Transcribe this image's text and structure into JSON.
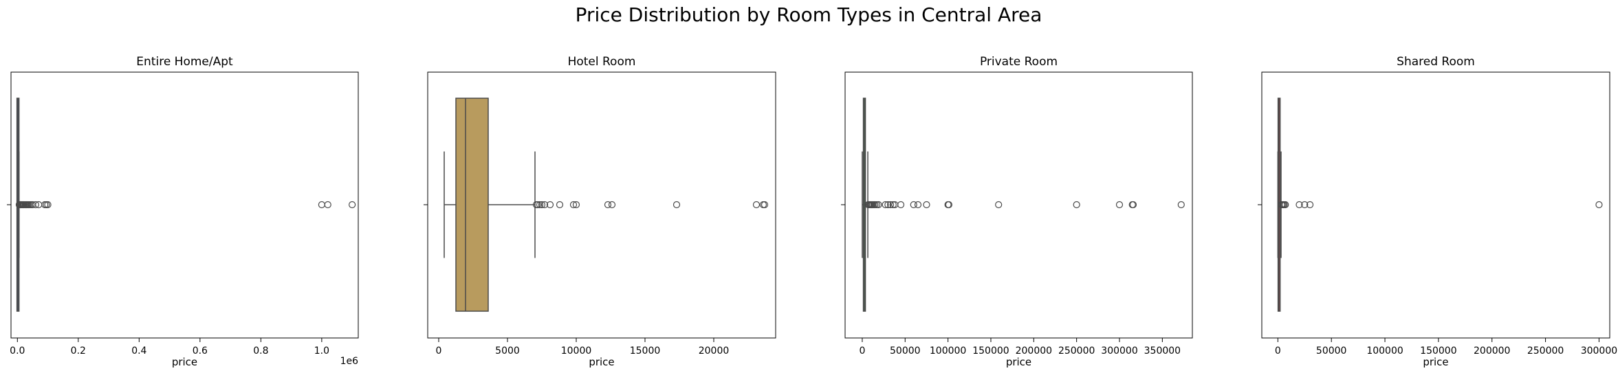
{
  "figure": {
    "suptitle": "Price Distribution by Room Types in Central Area"
  },
  "chart_data": [
    {
      "type": "box",
      "title": "Entire Home/Apt",
      "xlabel": "price",
      "ylabel": "",
      "xlim": [
        -21000,
        1120000
      ],
      "xticks": [
        0,
        200000,
        400000,
        600000,
        800000,
        1000000
      ],
      "xtick_labels": [
        "0.0",
        "0.2",
        "0.4",
        "0.6",
        "0.8",
        "1.0"
      ],
      "offset_label": "1e6",
      "box_color": "#4c72b0",
      "stats": {
        "whislo": 0,
        "q1": 1000,
        "median": 1800,
        "q3": 2800,
        "whishi": 5500
      },
      "outliers": [
        6000,
        7000,
        8000,
        9000,
        10000,
        12000,
        14000,
        16000,
        18000,
        20000,
        22000,
        25000,
        28000,
        30000,
        33000,
        36000,
        40000,
        45000,
        50000,
        60000,
        70000,
        90000,
        95000,
        100000,
        1000000,
        1020000,
        1100000
      ]
    },
    {
      "type": "box",
      "title": "Hotel Room",
      "xlabel": "price",
      "ylabel": "",
      "xlim": [
        -800,
        24500
      ],
      "xticks": [
        0,
        5000,
        10000,
        15000,
        20000
      ],
      "xtick_labels": [
        "0",
        "5000",
        "10000",
        "15000",
        "20000"
      ],
      "offset_label": "",
      "box_color": "#b89b5e",
      "stats": {
        "whislo": 400,
        "q1": 1250,
        "median": 1950,
        "q3": 3600,
        "whishi": 7000
      },
      "outliers": [
        7100,
        7200,
        7350,
        7500,
        7700,
        8100,
        8800,
        9800,
        10000,
        12300,
        12600,
        17300,
        23100,
        23600,
        23700
      ]
    },
    {
      "type": "box",
      "title": "Private Room",
      "xlabel": "price",
      "ylabel": "",
      "xlim": [
        -20000,
        385000
      ],
      "xticks": [
        0,
        50000,
        100000,
        150000,
        200000,
        250000,
        300000,
        350000
      ],
      "xtick_labels": [
        "0",
        "50000",
        "100000",
        "150000",
        "200000",
        "250000",
        "300000",
        "350000"
      ],
      "offset_label": "",
      "box_color": "#55a868",
      "stats": {
        "whislo": 0,
        "q1": 1500,
        "median": 2500,
        "q3": 3500,
        "whishi": 6500
      },
      "outliers": [
        7000,
        8000,
        9000,
        10000,
        11000,
        12000,
        13500,
        15000,
        17000,
        19000,
        27000,
        30000,
        33000,
        36000,
        38000,
        45000,
        60000,
        65000,
        75000,
        100000,
        101000,
        159000,
        250000,
        300000,
        315000,
        316000,
        372000
      ]
    },
    {
      "type": "box",
      "title": "Shared Room",
      "xlabel": "price",
      "ylabel": "",
      "xlim": [
        -15000,
        310000
      ],
      "xticks": [
        0,
        50000,
        100000,
        150000,
        200000,
        250000,
        300000
      ],
      "xtick_labels": [
        "0",
        "50000",
        "100000",
        "150000",
        "200000",
        "250000",
        "300000"
      ],
      "offset_label": "",
      "box_color": "#c44e52",
      "stats": {
        "whislo": 0,
        "q1": 600,
        "median": 1000,
        "q3": 1700,
        "whishi": 3000
      },
      "outliers": [
        3500,
        4000,
        5000,
        6000,
        7000,
        20000,
        25000,
        30000,
        300000
      ]
    }
  ]
}
